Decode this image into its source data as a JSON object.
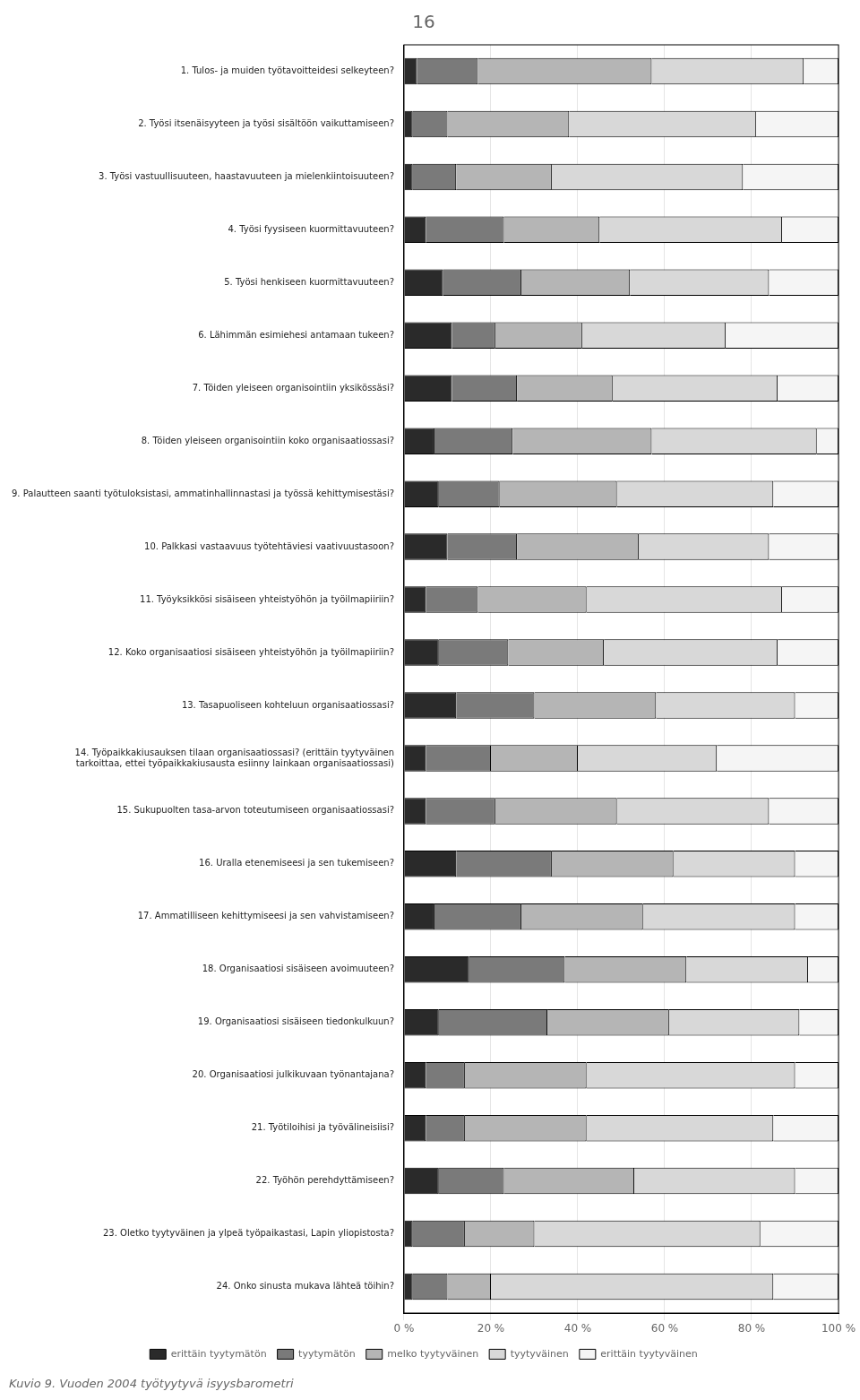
{
  "chart_data": {
    "type": "bar",
    "orientation": "horizontal",
    "stacked": true,
    "title": "16",
    "categories": [
      "1. Tulos- ja muiden työtavoitteidesi selkeyteen?",
      "2. Työsi itsenäisyyteen ja työsi sisältöön vaikuttamiseen?",
      "3. Työsi vastuullisuuteen, haastavuuteen ja mielenkiintoisuuteen?",
      "4. Työsi fyysiseen kuormittavuuteen?",
      "5. Työsi henkiseen kuormittavuuteen?",
      "6. Lähimmän esimiehesi antamaan tukeen?",
      "7. Töiden yleiseen organisointiin yksikössäsi?",
      "8. Töiden yleiseen organisointiin koko organisaatiossasi?",
      "9. Palautteen saanti työtuloksistasi, ammatinhallinnastasi ja työssä kehittymisestäsi?",
      "10. Palkkasi vastaavuus työtehtäviesi vaativuustasoon?",
      "11. Työyksikkösi sisäiseen yhteistyöhön ja työilmapiiriin?",
      "12. Koko organisaatiosi sisäiseen yhteistyöhön ja työilmapiiriin?",
      "13. Tasapuoliseen kohteluun organisaatiossasi?",
      "14. Työpaikkakiusauksen tilaan organisaatiossasi? (erittäin tyytyväinen\ntarkoittaa, ettei työpaikkakiusausta esiinny lainkaan organisaatiossasi)",
      "15. Sukupuolten tasa-arvon toteutumiseen organisaatiossasi?",
      "16. Uralla etenemiseesi ja sen tukemiseen?",
      "17. Ammatilliseen kehittymiseesi ja sen vahvistamiseen?",
      "18. Organisaatiosi sisäiseen avoimuuteen?",
      "19. Organisaatiosi sisäiseen tiedonkulkuun?",
      "20. Organisaatiosi julkikuvaan työnantajana?",
      "21. Työtiloihisi ja työvälineisiisi?",
      "22. Työhön perehdyttämiseen?",
      "23. Oletko tyytyväinen ja ylpeä työpaikastasi, Lapin yliopistosta?",
      "24. Onko sinusta mukava lähteä töihin?"
    ],
    "series": [
      {
        "name": "erittäin tyytymätön",
        "color": "#2a2a2a",
        "values": [
          3,
          2,
          2,
          5,
          9,
          11,
          11,
          7,
          8,
          10,
          5,
          8,
          12,
          5,
          5,
          12,
          7,
          15,
          8,
          5,
          5,
          8,
          2,
          2
        ]
      },
      {
        "name": "tyytymätön",
        "color": "#7a7a7a",
        "values": [
          14,
          8,
          10,
          18,
          18,
          10,
          15,
          18,
          14,
          16,
          12,
          16,
          18,
          15,
          16,
          22,
          20,
          22,
          25,
          9,
          9,
          15,
          12,
          8
        ]
      },
      {
        "name": "melko tyytyväinen",
        "color": "#b5b5b5",
        "values": [
          40,
          28,
          22,
          22,
          25,
          20,
          22,
          32,
          27,
          28,
          25,
          22,
          28,
          20,
          28,
          28,
          28,
          28,
          28,
          28,
          28,
          30,
          16,
          10
        ]
      },
      {
        "name": "tyytyväinen",
        "color": "#d8d8d8",
        "values": [
          35,
          43,
          44,
          42,
          32,
          33,
          38,
          38,
          36,
          30,
          45,
          40,
          32,
          32,
          35,
          28,
          35,
          28,
          30,
          48,
          43,
          37,
          52,
          65
        ]
      },
      {
        "name": "erittäin tyytyväinen",
        "color": "#f5f5f5",
        "values": [
          8,
          19,
          22,
          13,
          16,
          26,
          14,
          5,
          15,
          16,
          13,
          14,
          10,
          28,
          16,
          10,
          10,
          7,
          9,
          10,
          15,
          10,
          18,
          15
        ]
      }
    ],
    "xlim": [
      0,
      100
    ],
    "xticks": [
      {
        "value": 0,
        "label": "0 %"
      },
      {
        "value": 20,
        "label": "20 %"
      },
      {
        "value": 40,
        "label": "40 %"
      },
      {
        "value": 60,
        "label": "60 %"
      },
      {
        "value": 80,
        "label": "80 %"
      },
      {
        "value": 100,
        "label": "100 %"
      }
    ],
    "grid": true,
    "legend": "bottom",
    "footer": "Kuvio 9. Vuoden 2004 työtyytyvä isyysbarometri"
  }
}
